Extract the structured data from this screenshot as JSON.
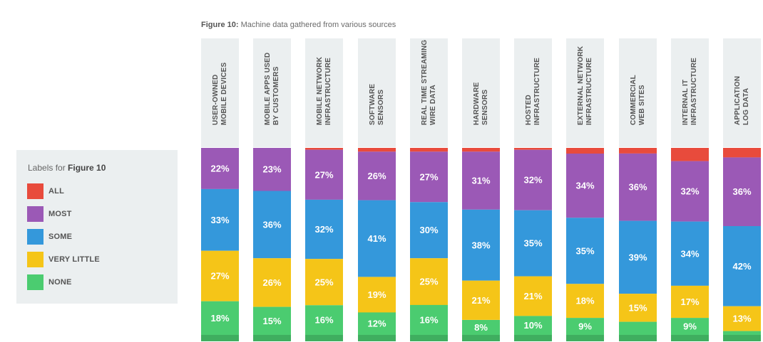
{
  "title_prefix": "Figure 10:",
  "title_text": " Machine data gathered from various sources",
  "legend": {
    "prefix": "Labels for ",
    "strong": "Figure 10",
    "items": [
      {
        "label": "ALL",
        "color": "#e84b3c"
      },
      {
        "label": "MOST",
        "color": "#9b59b6"
      },
      {
        "label": "SOME",
        "color": "#3498db"
      },
      {
        "label": "VERY LITTLE",
        "color": "#f5c518"
      },
      {
        "label": "NONE",
        "color": "#4bcc70"
      }
    ]
  },
  "chart_data": {
    "type": "bar",
    "stacked": true,
    "orientation": "vertical",
    "unit": "%",
    "categories": [
      "USER-OWNED\nMOBILE DEVICES",
      "MOBILE APPS USED\nBY CUSTOMERS",
      "MOBILE NETWORK\nINFRASTRUCTURE",
      "SOFTWARE\nSENSORS",
      "REAL TIME STREAMING\nWIRE DATA",
      "HARDWARE\nSENSORS",
      "HOSTED\nINFRASTRUCTURE",
      "EXTERNAL NETWORK\nINFRASTRUCTURE",
      "COMMERCIAL\nWEB SITES",
      "INTERNAL IT\nINFRASTRUCTURE",
      "APPLICATION\nLOG DATA"
    ],
    "series": [
      {
        "name": "ALL",
        "color": "#e84b3c",
        "values": [
          0,
          0,
          1,
          2,
          2,
          2,
          1,
          3,
          3,
          7,
          5
        ],
        "show_labels": false
      },
      {
        "name": "MOST",
        "color": "#9b59b6",
        "values": [
          22,
          23,
          27,
          26,
          27,
          31,
          32,
          34,
          36,
          32,
          36
        ],
        "show_labels": true
      },
      {
        "name": "SOME",
        "color": "#3498db",
        "values": [
          33,
          36,
          32,
          41,
          30,
          38,
          35,
          35,
          39,
          34,
          42
        ],
        "show_labels": true
      },
      {
        "name": "VERY LITTLE",
        "color": "#f5c518",
        "values": [
          27,
          26,
          25,
          19,
          25,
          21,
          21,
          18,
          15,
          17,
          13
        ],
        "show_labels": true
      },
      {
        "name": "NONE",
        "color": "#4bcc70",
        "values": [
          18,
          15,
          16,
          12,
          16,
          8,
          10,
          9,
          7,
          9,
          2
        ],
        "show_labels": true,
        "labels": [
          "18%",
          "15%",
          "16%",
          "12%",
          "16%",
          "8%",
          "10%",
          "9%",
          "",
          "9%",
          ""
        ]
      }
    ],
    "ylim": [
      0,
      100
    ]
  }
}
